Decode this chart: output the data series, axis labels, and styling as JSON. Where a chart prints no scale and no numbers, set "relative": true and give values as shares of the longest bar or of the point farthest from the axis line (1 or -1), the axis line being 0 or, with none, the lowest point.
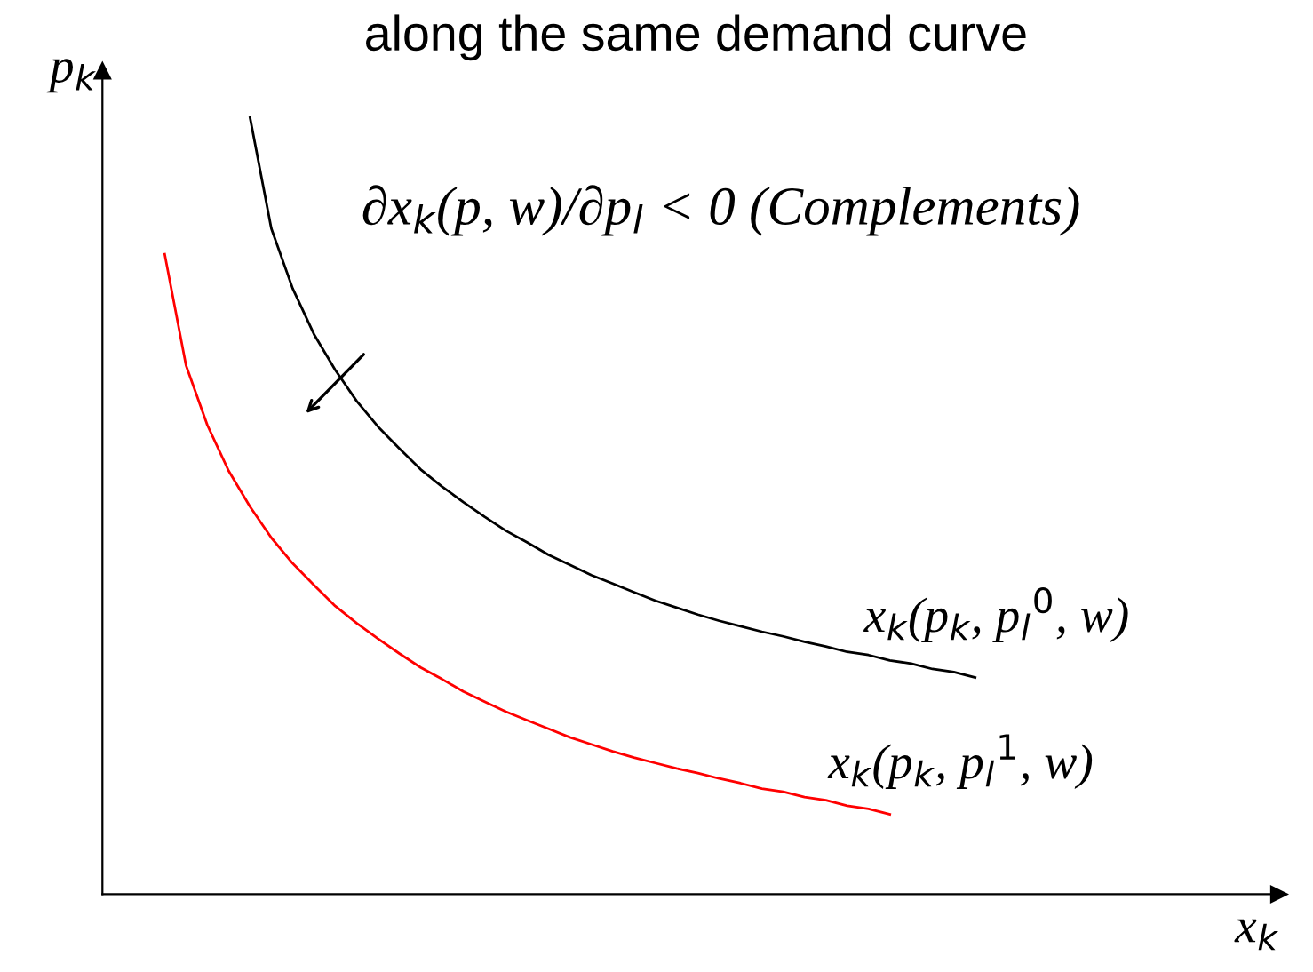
{
  "chart_data": {
    "type": "line",
    "relative": true,
    "title": "along the same demand curve",
    "xlabel": "x$_{k}$",
    "ylabel": "p$_{k}$",
    "categories": [
      null,
      null,
      null,
      null,
      null,
      null,
      null,
      null,
      null,
      null,
      null,
      null,
      null,
      null,
      null,
      null,
      null,
      null,
      null,
      null,
      null,
      null,
      null,
      null,
      null,
      null,
      null,
      null,
      null,
      null,
      null,
      null,
      null,
      null,
      null,
      null,
      null,
      null,
      null,
      null
    ],
    "series": [
      {
        "name": "x$_{k}$(p$_{k}$, p$_{l}$$^{0}$, w)",
        "color": "#000000",
        "values": [
          null,
          null,
          null,
          null,
          1.0,
          0.857,
          0.78,
          0.721,
          0.675,
          0.635,
          0.602,
          0.574,
          0.547,
          0.525,
          0.505,
          0.486,
          0.468,
          0.453,
          0.437,
          0.424,
          0.411,
          0.4,
          0.389,
          0.378,
          0.369,
          0.36,
          0.352,
          0.345,
          0.338,
          0.332,
          0.325,
          0.319,
          0.312,
          0.308,
          0.301,
          0.297,
          0.29,
          0.286,
          0.279,
          null
        ]
      },
      {
        "name": "x$_{k}$(p$_{k}$, p$_{l}$$^{1}$, w)",
        "color": "#ff0000",
        "values": [
          0.824,
          0.681,
          0.604,
          0.545,
          0.499,
          0.459,
          0.426,
          0.398,
          0.371,
          0.349,
          0.329,
          0.31,
          0.292,
          0.277,
          0.261,
          0.248,
          0.235,
          0.224,
          0.213,
          0.202,
          0.193,
          0.184,
          0.176,
          0.169,
          0.162,
          0.156,
          0.149,
          0.143,
          0.136,
          0.132,
          0.125,
          0.121,
          0.114,
          0.11,
          0.103,
          null,
          null,
          null,
          null,
          null
        ]
      }
    ],
    "annotations": [
      "∂x$_{k}$(p, w)/∂p$_{l}$ < 0 (Complements)"
    ],
    "legend": false,
    "grid": false,
    "marker": "none",
    "line_style": "solid"
  }
}
